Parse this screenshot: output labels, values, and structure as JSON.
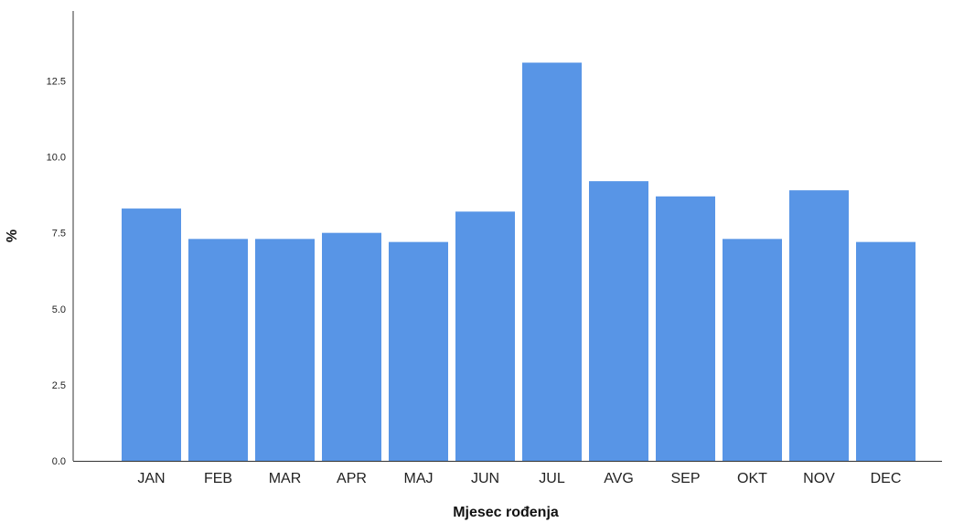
{
  "chart_data": {
    "type": "bar",
    "title": "",
    "xlabel": "Mjesec rođenja",
    "ylabel": "%",
    "categories": [
      "JAN",
      "FEB",
      "MAR",
      "APR",
      "MAJ",
      "JUN",
      "JUL",
      "AVG",
      "SEP",
      "OKT",
      "NOV",
      "DEC"
    ],
    "values": [
      8.3,
      7.3,
      7.3,
      7.5,
      7.2,
      8.2,
      13.1,
      9.2,
      8.7,
      7.3,
      8.9,
      7.2
    ],
    "ylim": [
      0,
      14.8
    ],
    "yticks": [
      0.0,
      2.5,
      5.0,
      7.5,
      10.0,
      12.5
    ],
    "ytick_labels": [
      "0.0",
      "2.5",
      "5.0",
      "7.5",
      "10.0",
      "12.5"
    ],
    "grid": false,
    "bar_color": "#5895e6"
  }
}
